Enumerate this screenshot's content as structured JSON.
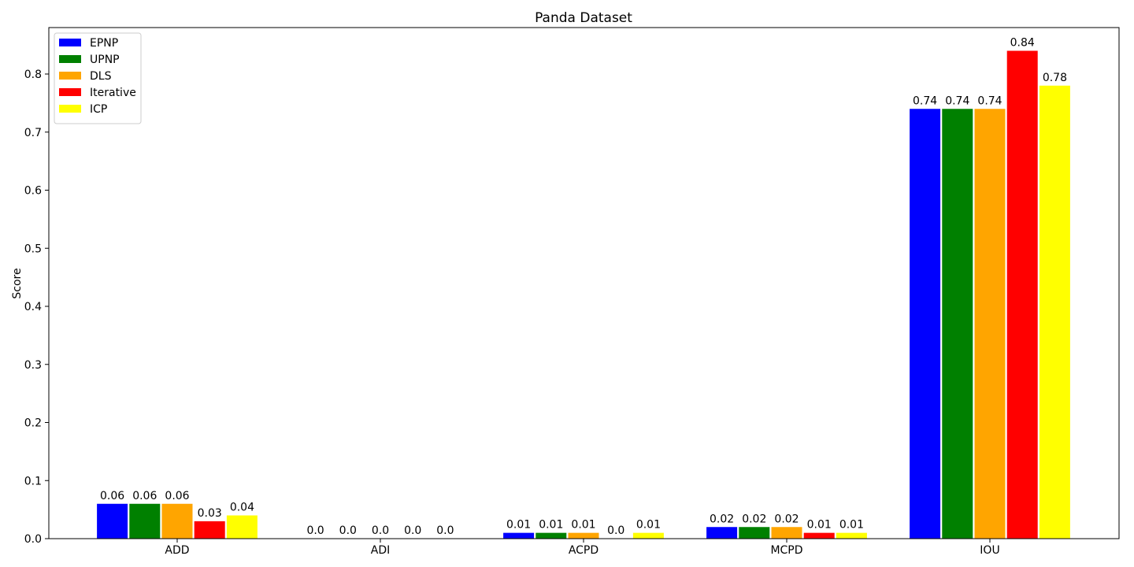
{
  "chart_data": {
    "type": "bar",
    "title": "Panda Dataset",
    "xlabel": "",
    "ylabel": "Score",
    "categories": [
      "ADD",
      "ADI",
      "ACPD",
      "MCPD",
      "IOU"
    ],
    "series": [
      {
        "name": "EPNP",
        "color": "#0000ff",
        "values": [
          0.06,
          0.0,
          0.01,
          0.02,
          0.74
        ],
        "labels": [
          "0.06",
          "0.0",
          "0.01",
          "0.02",
          "0.74"
        ]
      },
      {
        "name": "UPNP",
        "color": "#008000",
        "values": [
          0.06,
          0.0,
          0.01,
          0.02,
          0.74
        ],
        "labels": [
          "0.06",
          "0.0",
          "0.01",
          "0.02",
          "0.74"
        ]
      },
      {
        "name": "DLS",
        "color": "#ffa500",
        "values": [
          0.06,
          0.0,
          0.01,
          0.02,
          0.74
        ],
        "labels": [
          "0.06",
          "0.0",
          "0.01",
          "0.02",
          "0.74"
        ]
      },
      {
        "name": "Iterative",
        "color": "#ff0000",
        "values": [
          0.03,
          0.0,
          0.0,
          0.01,
          0.84
        ],
        "labels": [
          "0.03",
          "0.0",
          "0.0",
          "0.01",
          "0.84"
        ]
      },
      {
        "name": "ICP",
        "color": "#ffff00",
        "values": [
          0.04,
          0.0,
          0.01,
          0.01,
          0.78
        ],
        "labels": [
          "0.04",
          "0.0",
          "0.01",
          "0.01",
          "0.78"
        ]
      }
    ],
    "ylim": [
      0,
      0.88
    ],
    "yticks": [
      0.0,
      0.1,
      0.2,
      0.3,
      0.4,
      0.5,
      0.6,
      0.7,
      0.8
    ],
    "ytick_labels": [
      "0.0",
      "0.1",
      "0.2",
      "0.3",
      "0.4",
      "0.5",
      "0.6",
      "0.7",
      "0.8"
    ],
    "grid": false,
    "legend": "top-left"
  }
}
